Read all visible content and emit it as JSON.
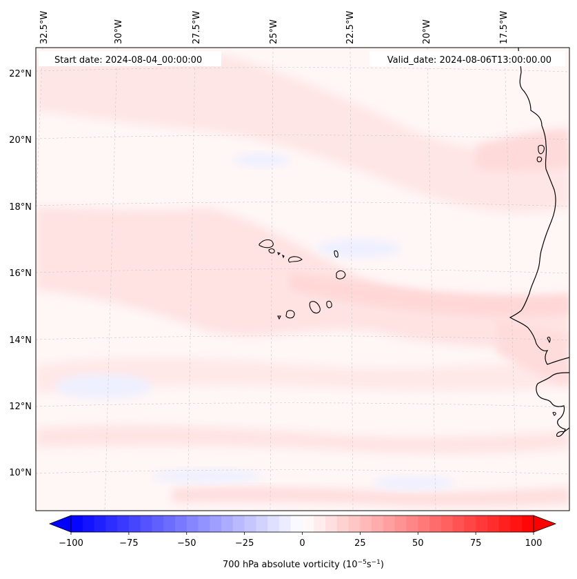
{
  "map": {
    "start_date": "Start date: 2024-08-04_00:00:00",
    "valid_date": "Valid_date: 2024-08-06T13:00:00.00",
    "lon_labels": [
      "32.5°W",
      "30°W",
      "27.5°W",
      "25°W",
      "22.5°W",
      "20°W",
      "17.5°W"
    ],
    "lat_labels": [
      "22°N",
      "20°N",
      "18°N",
      "16°N",
      "14°N",
      "12°N",
      "10°N"
    ],
    "field_colors": {
      "background": "#fff6f6",
      "light_red": "#ffe6e6",
      "mid_red": "#ffd7d7",
      "light_blue": "#f2f4ff"
    },
    "coastline_color": "#000000",
    "gridline_color": "#c8c8c8"
  },
  "colorbar": {
    "ticks": [
      "−100",
      "−75",
      "−50",
      "−25",
      "0",
      "25",
      "50",
      "75",
      "100"
    ],
    "min": -100,
    "max": 100,
    "step": 5,
    "label": "700 hPa absolute vorticity (10",
    "label_exp1": "−5",
    "label_mid": "s",
    "label_exp2": "−1",
    "label_end": ")"
  }
}
